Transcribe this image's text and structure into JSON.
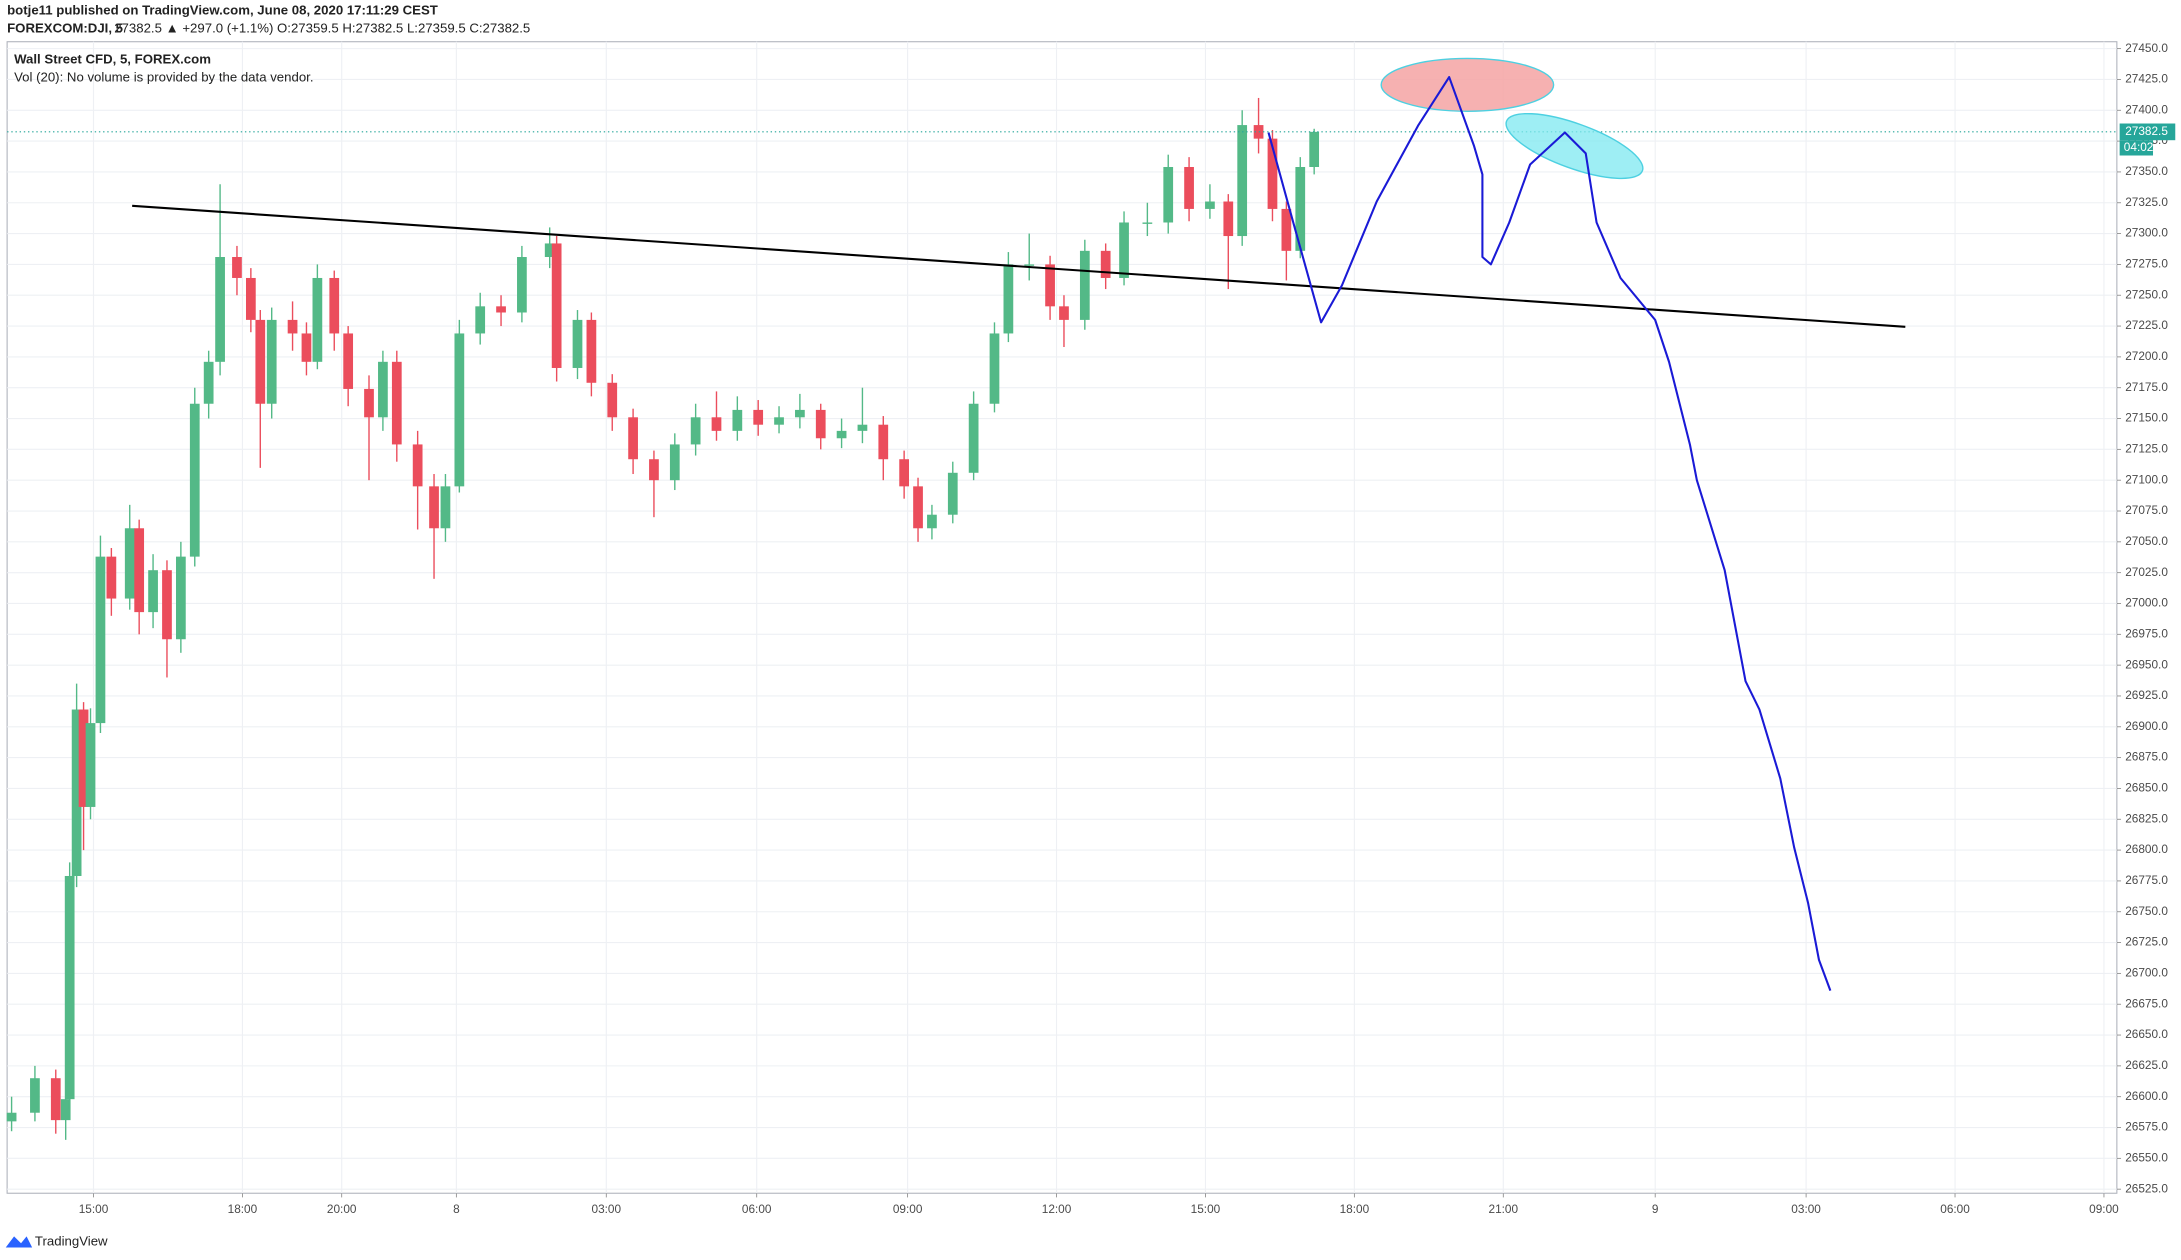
{
  "header": {
    "publisher": "botje11 published on TradingView.com, June 08, 2020 17:11:29 CEST",
    "symbol": "FOREXCOM:DJI, 5",
    "quote": "27382.5 ▲ +297.0 (+1.1%) O:27359.5 H:27382.5 L:27359.5 C:27382.5",
    "volume_note": "Vol (20): No volume is provided by the data vendor.",
    "countdown": "04:02",
    "brand": "TradingView"
  },
  "chart_data": {
    "type": "candlestick",
    "title": "Wall Street CFD, 5, FOREX.com",
    "up_color": "#53b987",
    "down_color": "#eb4d5c",
    "grid": true,
    "last_price": 27382.5,
    "last_price_color": "#26a69a",
    "x": [
      -1.65,
      -1.18,
      -0.76,
      -0.56,
      -0.48,
      -0.34,
      -0.2,
      -0.06,
      0.14,
      0.36,
      0.73,
      0.92,
      1.2,
      1.48,
      1.76,
      2.04,
      2.32,
      2.55,
      2.89,
      3.17,
      3.36,
      3.59,
      4.01,
      4.29,
      4.51,
      4.85,
      5.13,
      5.55,
      5.83,
      6.11,
      6.53,
      6.86,
      7.09,
      7.37,
      7.79,
      8.21,
      8.63,
      9.19,
      9.33,
      9.75,
      10.03,
      10.45,
      10.87,
      11.29,
      11.71,
      12.13,
      12.55,
      12.97,
      13.39,
      13.81,
      14.23,
      14.65,
      15.07,
      15.49,
      15.91,
      16.33,
      16.61,
      16.89,
      17.31,
      17.73,
      18.15,
      18.43,
      18.85,
      19.27,
      19.55,
      19.97,
      20.39,
      20.76,
      21.23,
      21.65,
      22.07,
      22.49,
      22.86,
      23.14,
      23.47,
      23.75,
      24.03,
      24.31,
      24.59
    ],
    "open": [
      26580,
      26587,
      26615,
      26581,
      26598,
      26779,
      26914,
      26835,
      26903,
      27038,
      27004,
      27061,
      26993,
      27027,
      26971,
      27038,
      27162,
      27196,
      27281,
      27264,
      27230,
      27162,
      27230,
      27219,
      27196,
      27264,
      27219,
      27174,
      27151,
      27196,
      27129,
      27095,
      27061,
      27095,
      27219,
      27241,
      27236,
      27281,
      27292,
      27191,
      27230,
      27179,
      27151,
      27117,
      27100,
      27129,
      27151,
      27140,
      27157,
      27145,
      27151,
      27157,
      27134,
      27140,
      27145,
      27117,
      27095,
      27061,
      27072,
      27106,
      27162,
      27219,
      27275,
      27275,
      27241,
      27230,
      27286,
      27264,
      27309,
      27309,
      27354,
      27320,
      27326,
      27298,
      27388,
      27377,
      27320,
      27286,
      27354
    ],
    "high": [
      26600,
      26625,
      26622,
      26605,
      26790,
      26935,
      26920,
      26915,
      27055,
      27045,
      27080,
      27068,
      27040,
      27035,
      27050,
      27175,
      27205,
      27340,
      27290,
      27272,
      27238,
      27240,
      27245,
      27228,
      27275,
      27270,
      27225,
      27185,
      27205,
      27205,
      27140,
      27105,
      27105,
      27230,
      27252,
      27250,
      27290,
      27305,
      27298,
      27238,
      27236,
      27186,
      27158,
      27124,
      27138,
      27162,
      27172,
      27168,
      27165,
      27160,
      27170,
      27162,
      27150,
      27175,
      27152,
      27124,
      27102,
      27080,
      27115,
      27172,
      27228,
      27285,
      27300,
      27282,
      27250,
      27295,
      27292,
      27318,
      27325,
      27364,
      27362,
      27340,
      27332,
      27400,
      27410,
      27384,
      27326,
      27362,
      27385
    ],
    "low": [
      26572,
      26580,
      26570,
      26565,
      26590,
      26770,
      26800,
      26825,
      26895,
      26990,
      26995,
      26975,
      26980,
      26940,
      26960,
      27030,
      27150,
      27185,
      27250,
      27220,
      27110,
      27150,
      27205,
      27185,
      27190,
      27205,
      27160,
      27100,
      27140,
      27115,
      27060,
      27020,
      27050,
      27090,
      27210,
      27225,
      27228,
      27272,
      27180,
      27182,
      27168,
      27140,
      27105,
      27070,
      27092,
      27120,
      27132,
      27132,
      27136,
      27138,
      27142,
      27125,
      27126,
      27130,
      27100,
      27085,
      27050,
      27052,
      27065,
      27100,
      27155,
      27212,
      27262,
      27230,
      27208,
      27222,
      27255,
      27258,
      27298,
      27300,
      27310,
      27312,
      27255,
      27290,
      27365,
      27310,
      27262,
      27280,
      27348
    ],
    "close": [
      26587,
      26615,
      26581,
      26598,
      26779,
      26914,
      26835,
      26903,
      27038,
      27004,
      27061,
      26993,
      27027,
      26971,
      27038,
      27162,
      27196,
      27281,
      27264,
      27230,
      27162,
      27230,
      27219,
      27196,
      27264,
      27219,
      27174,
      27151,
      27196,
      27129,
      27095,
      27061,
      27095,
      27219,
      27241,
      27236,
      27281,
      27292,
      27191,
      27230,
      27179,
      27151,
      27117,
      27100,
      27129,
      27151,
      27140,
      27157,
      27145,
      27151,
      27157,
      27134,
      27140,
      27145,
      27117,
      27095,
      27061,
      27072,
      27106,
      27162,
      27219,
      27275,
      27275,
      27241,
      27230,
      27286,
      27264,
      27309,
      27309,
      27354,
      27320,
      27326,
      27298,
      27388,
      27377,
      27320,
      27286,
      27354,
      27382.5
    ],
    "trend_line": {
      "color": "#000000",
      "x": [
        0.78,
        36.5
      ],
      "y": [
        27322.5,
        27224.4
      ]
    },
    "projection": {
      "color": "#1a1ad6",
      "x": [
        23.67,
        24.17,
        24.73,
        25.15,
        25.85,
        26.69,
        27.31,
        27.81,
        27.98,
        27.98,
        28.15,
        28.52,
        28.94,
        29.64,
        30.06,
        30.28,
        30.76,
        31.46,
        31.74,
        32.16,
        32.3,
        32.86,
        33.28,
        33.56,
        33.98,
        34.26,
        34.54,
        34.76,
        34.99
      ],
      "y": [
        27382,
        27309,
        27228,
        27258,
        27326,
        27388,
        27427,
        27371,
        27348,
        27281,
        27275,
        27309,
        27356,
        27382,
        27365,
        27309,
        27264,
        27230,
        27196,
        27129,
        27100,
        27027,
        26937,
        26914,
        26858,
        26802,
        26757,
        26711,
        26686
      ]
    },
    "xlim": [
      -1.74,
      40.76
    ],
    "xticks": [
      {
        "value": 0,
        "label": "15:00"
      },
      {
        "value": 3,
        "label": "18:00"
      },
      {
        "value": 5,
        "label": "20:00"
      },
      {
        "value": 7.31,
        "label": "8"
      },
      {
        "value": 10.33,
        "label": "03:00"
      },
      {
        "value": 13.36,
        "label": "06:00"
      },
      {
        "value": 16.4,
        "label": "09:00"
      },
      {
        "value": 19.4,
        "label": "12:00"
      },
      {
        "value": 22.4,
        "label": "15:00"
      },
      {
        "value": 25.4,
        "label": "18:00"
      },
      {
        "value": 28.4,
        "label": "21:00"
      },
      {
        "value": 31.46,
        "label": "9"
      },
      {
        "value": 34.5,
        "label": "03:00"
      },
      {
        "value": 37.5,
        "label": "06:00"
      },
      {
        "value": 40.5,
        "label": "09:00"
      }
    ],
    "ylim": [
      26521.7,
      27455.6
    ],
    "yticks": [
      {
        "value": 26525,
        "label": "26525.0"
      },
      {
        "value": 26550,
        "label": "26550.0"
      },
      {
        "value": 26575,
        "label": "26575.0"
      },
      {
        "value": 26600,
        "label": "26600.0"
      },
      {
        "value": 26625,
        "label": "26625.0"
      },
      {
        "value": 26650,
        "label": "26650.0"
      },
      {
        "value": 26675,
        "label": "26675.0"
      },
      {
        "value": 26700,
        "label": "26700.0"
      },
      {
        "value": 26725,
        "label": "26725.0"
      },
      {
        "value": 26750,
        "label": "26750.0"
      },
      {
        "value": 26775,
        "label": "26775.0"
      },
      {
        "value": 26800,
        "label": "26800.0"
      },
      {
        "value": 26825,
        "label": "26825.0"
      },
      {
        "value": 26850,
        "label": "26850.0"
      },
      {
        "value": 26875,
        "label": "26875.0"
      },
      {
        "value": 26900,
        "label": "26900.0"
      },
      {
        "value": 26925,
        "label": "26925.0"
      },
      {
        "value": 26950,
        "label": "26950.0"
      },
      {
        "value": 26975,
        "label": "26975.0"
      },
      {
        "value": 27000,
        "label": "27000.0"
      },
      {
        "value": 27025,
        "label": "27025.0"
      },
      {
        "value": 27050,
        "label": "27050.0"
      },
      {
        "value": 27075,
        "label": "27075.0"
      },
      {
        "value": 27100,
        "label": "27100.0"
      },
      {
        "value": 27125,
        "label": "27125.0"
      },
      {
        "value": 27150,
        "label": "27150.0"
      },
      {
        "value": 27175,
        "label": "27175.0"
      },
      {
        "value": 27200,
        "label": "27200.0"
      },
      {
        "value": 27225,
        "label": "27225.0"
      },
      {
        "value": 27250,
        "label": "27250.0"
      },
      {
        "value": 27275,
        "label": "27275.0"
      },
      {
        "value": 27300,
        "label": "27300.0"
      },
      {
        "value": 27325,
        "label": "27325.0"
      },
      {
        "value": 27350,
        "label": "27350.0"
      },
      {
        "value": 27375,
        "label": "27375.0"
      },
      {
        "value": 27400,
        "label": "27400.0"
      },
      {
        "value": 27425,
        "label": "27425.0"
      },
      {
        "value": 27450,
        "label": "27450.0"
      }
    ]
  }
}
